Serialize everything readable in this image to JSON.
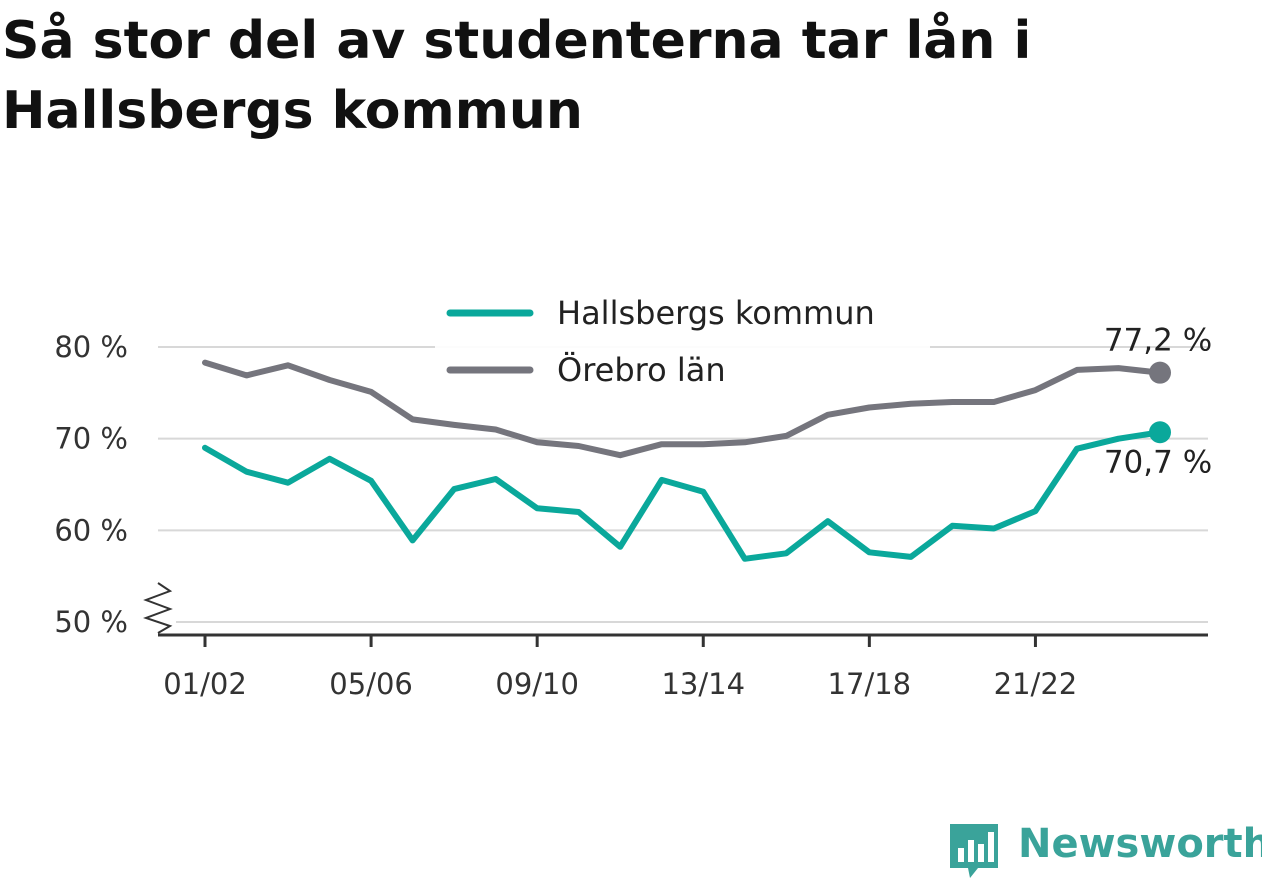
{
  "title": "Så stor del av studenterna tar lån i Hallsbergs kommun",
  "colors": {
    "hallsberg": "#0aa89b",
    "orebro": "#75757d",
    "grid": "#d8d8d8",
    "axis": "#333333"
  },
  "chart_data": {
    "type": "line",
    "title": "Så stor del av studenterna tar lån i Hallsbergs kommun",
    "xlabel": "",
    "ylabel": "",
    "x": [
      "01/02",
      "02/03",
      "03/04",
      "04/05",
      "05/06",
      "06/07",
      "07/08",
      "08/09",
      "09/10",
      "10/11",
      "11/12",
      "12/13",
      "13/14",
      "14/15",
      "15/16",
      "16/17",
      "17/18",
      "18/19",
      "19/20",
      "20/21",
      "21/22",
      "22/23",
      "23/24",
      "24/25"
    ],
    "x_tick_labels": [
      "01/02",
      "05/06",
      "09/10",
      "13/14",
      "17/18",
      "21/22"
    ],
    "y_ticks": [
      50,
      60,
      70,
      80
    ],
    "y_tick_labels": [
      "50 %",
      "60 %",
      "70 %",
      "80 %"
    ],
    "ylim": [
      50,
      80
    ],
    "axis_break": true,
    "grid": true,
    "legend_position": "top-center",
    "series": [
      {
        "name": "Hallsbergs kommun",
        "color": "#0aa89b",
        "values": [
          69.0,
          66.4,
          65.2,
          67.8,
          65.4,
          58.9,
          64.5,
          65.6,
          62.4,
          62.0,
          58.2,
          65.5,
          64.2,
          56.9,
          57.5,
          61.0,
          57.6,
          57.1,
          60.5,
          60.2,
          62.1,
          68.9,
          70.0,
          70.7
        ],
        "end_label": "70,7 %"
      },
      {
        "name": "Örebro län",
        "color": "#75757d",
        "values": [
          78.3,
          76.9,
          78.0,
          76.4,
          75.1,
          72.1,
          71.5,
          71.0,
          69.6,
          69.2,
          68.2,
          69.4,
          69.4,
          69.6,
          70.3,
          72.6,
          73.4,
          73.8,
          74.0,
          74.0,
          75.3,
          77.5,
          77.7,
          77.2
        ],
        "end_label": "77,2 %"
      }
    ]
  },
  "logo": {
    "text": "Newsworthy",
    "icon": "newsworthy-bar-chart-icon"
  }
}
